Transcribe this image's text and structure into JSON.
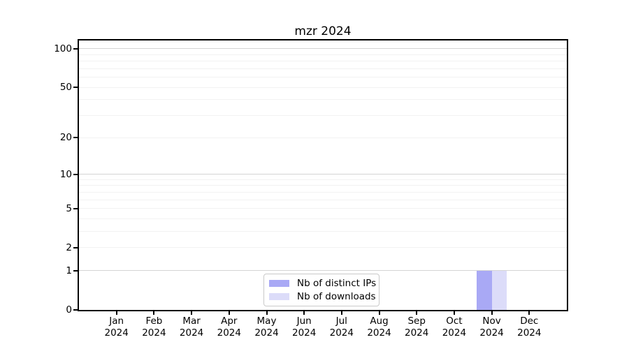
{
  "chart_data": {
    "type": "bar",
    "title": "mzr 2024",
    "categories": [
      "Jan 2024",
      "Feb 2024",
      "Mar 2024",
      "Apr 2024",
      "May 2024",
      "Jun 2024",
      "Jul 2024",
      "Aug 2024",
      "Sep 2024",
      "Oct 2024",
      "Nov 2024",
      "Dec 2024"
    ],
    "series": [
      {
        "name": "Nb of distinct IPs",
        "color": "#a9a9f5",
        "values": [
          0,
          0,
          0,
          0,
          0,
          0,
          0,
          0,
          0,
          0,
          1,
          0
        ]
      },
      {
        "name": "Nb of downloads",
        "color": "#dcdcf9",
        "values": [
          0,
          0,
          0,
          0,
          0,
          0,
          0,
          0,
          0,
          0,
          1,
          0
        ]
      }
    ],
    "xlabel": "",
    "ylabel": "",
    "yscale": "log1p",
    "ylim": [
      0,
      116
    ],
    "yticks": [
      0,
      1,
      2,
      5,
      10,
      20,
      50,
      100
    ],
    "major_gridlines": [
      1,
      10,
      100
    ],
    "minor_gridlines": [
      2,
      3,
      4,
      5,
      6,
      7,
      8,
      9,
      20,
      30,
      40,
      50,
      60,
      70,
      80,
      90
    ],
    "grid": "both",
    "legend_position": "lower center",
    "colors": {
      "axis": "#000000",
      "major_grid": "#d4d4d4",
      "minor_grid": "#f2f2f2",
      "background": "#ffffff"
    }
  }
}
